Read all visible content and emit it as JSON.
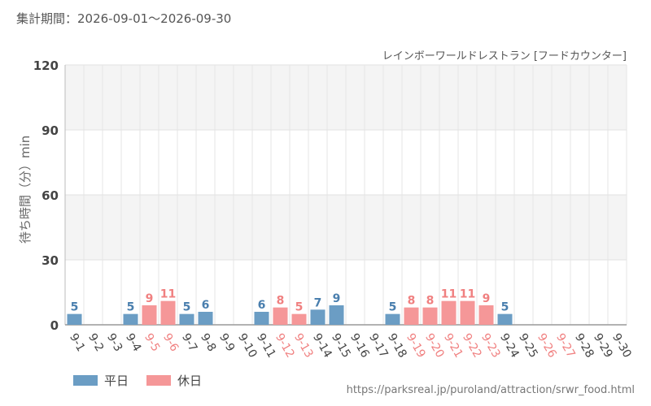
{
  "header": {
    "period": "集計期間：2026-09-01〜2026-09-30",
    "attraction": "レインボーワールドレストラン [フードカウンター]"
  },
  "legend": {
    "weekday": "平日",
    "holiday": "休日"
  },
  "source_url": "https://parksreal.jp/puroland/attraction/srwr_food.html",
  "colors": {
    "weekday": "#6b9dc4",
    "holiday": "#f59798",
    "weekday_label": "#4a7fae",
    "holiday_label": "#f08080"
  },
  "chart_data": {
    "type": "bar",
    "ylabel": "待ち時間（分）min",
    "ylim": [
      0,
      120
    ],
    "yticks": [
      0,
      30,
      60,
      90,
      120
    ],
    "grid": true,
    "legend_position": "bottom-left",
    "categories": [
      "9-1",
      "9-2",
      "9-3",
      "9-4",
      "9-5",
      "9-6",
      "9-7",
      "9-8",
      "9-9",
      "9-10",
      "9-11",
      "9-12",
      "9-13",
      "9-14",
      "9-15",
      "9-16",
      "9-17",
      "9-18",
      "9-19",
      "9-20",
      "9-21",
      "9-22",
      "9-23",
      "9-24",
      "9-25",
      "9-26",
      "9-27",
      "9-28",
      "9-29",
      "9-30"
    ],
    "values": [
      5,
      null,
      null,
      5,
      9,
      11,
      5,
      6,
      null,
      null,
      6,
      8,
      5,
      7,
      9,
      null,
      null,
      5,
      8,
      8,
      11,
      11,
      9,
      5,
      null,
      null,
      null,
      null,
      null,
      null
    ],
    "day_type": [
      "weekday",
      "weekday",
      "weekday",
      "weekday",
      "holiday",
      "holiday",
      "weekday",
      "weekday",
      "weekday",
      "weekday",
      "weekday",
      "holiday",
      "holiday",
      "weekday",
      "weekday",
      "weekday",
      "weekday",
      "weekday",
      "holiday",
      "holiday",
      "holiday",
      "holiday",
      "holiday",
      "weekday",
      "weekday",
      "holiday",
      "holiday",
      "weekday",
      "weekday",
      "weekday"
    ]
  }
}
